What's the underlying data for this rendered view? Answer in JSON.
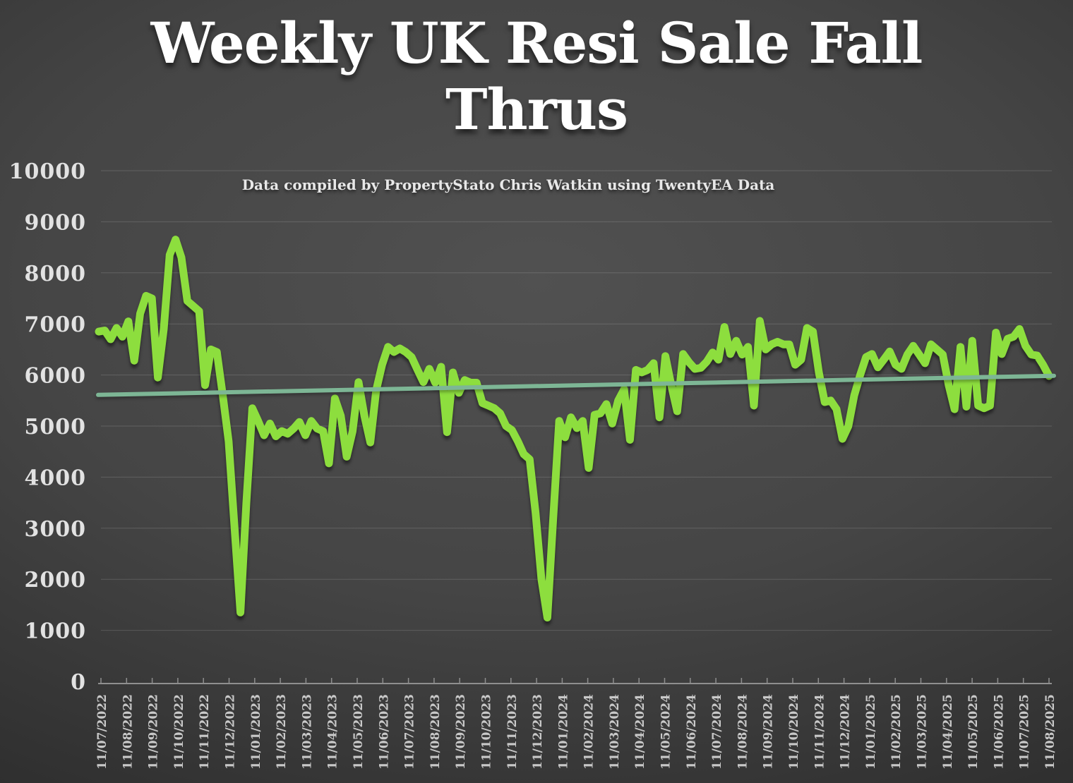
{
  "slide": {
    "title_line1": "Weekly UK Resi Sale Fall",
    "title_line2": "Thrus",
    "subtitle": "Data compiled by PropertyStato Chris Watkin using TwentyEA Data"
  },
  "colors": {
    "line_green": "#8dde3e",
    "trend_teal": "#7db695",
    "title_white": "#ffffff",
    "axis_gray": "#8f8f8f",
    "label_gray": "#c9c9c9"
  },
  "chart_data": {
    "type": "line",
    "title": "Weekly UK Resi Sale Fall Thrus",
    "subtitle": "Data compiled by PropertyStato Chris Watkin using TwentyEA Data",
    "cadence": "weekly",
    "grid": true,
    "legend_position": "none",
    "ylim": [
      0,
      10000
    ],
    "y_ticks": [
      0,
      1000,
      2000,
      3000,
      4000,
      5000,
      6000,
      7000,
      8000,
      9000,
      10000
    ],
    "x_tick_labels": [
      "11/07/2022",
      "11/08/2022",
      "11/09/2022",
      "11/10/2022",
      "11/11/2022",
      "11/12/2022",
      "11/01/2023",
      "11/02/2023",
      "11/03/2023",
      "11/04/2023",
      "11/05/2023",
      "11/06/2023",
      "11/07/2023",
      "11/08/2023",
      "11/09/2023",
      "11/10/2023",
      "11/11/2023",
      "11/12/2023",
      "11/01/2024",
      "11/02/2024",
      "11/03/2024",
      "11/04/2024",
      "11/05/2024",
      "11/06/2024",
      "11/07/2024",
      "11/08/2024",
      "11/09/2024",
      "11/10/2024",
      "11/11/2024",
      "11/12/2024",
      "11/01/2025",
      "11/02/2025",
      "11/03/2025",
      "11/04/2025",
      "11/05/2025",
      "11/06/2025",
      "11/07/2025",
      "11/08/2025"
    ],
    "series": [
      {
        "name": "Weekly UK residential sale fall-throughs",
        "color": "#8dde3e",
        "start_label": "11/07/2022",
        "end_label": "11/08/2025",
        "values": [
          6850,
          6870,
          6700,
          6920,
          6750,
          7050,
          6280,
          7200,
          7550,
          7500,
          5950,
          6900,
          8350,
          8650,
          8300,
          7450,
          7350,
          7250,
          5800,
          6500,
          6450,
          5600,
          4700,
          3000,
          1350,
          3500,
          5350,
          5100,
          4820,
          5050,
          4800,
          4900,
          4850,
          4950,
          5080,
          4820,
          5100,
          4950,
          4900,
          4270,
          5540,
          5200,
          4400,
          4900,
          5860,
          5200,
          4680,
          5700,
          6200,
          6550,
          6450,
          6520,
          6450,
          6350,
          6100,
          5860,
          6120,
          5850,
          6160,
          4880,
          6050,
          5650,
          5900,
          5850,
          5850,
          5450,
          5400,
          5350,
          5250,
          5000,
          4920,
          4700,
          4450,
          4350,
          3300,
          2000,
          1250,
          3200,
          5100,
          4780,
          5170,
          4960,
          5100,
          4180,
          5220,
          5250,
          5430,
          5050,
          5500,
          5720,
          4730,
          6100,
          6050,
          6100,
          6230,
          5170,
          6370,
          5800,
          5290,
          6410,
          6250,
          6120,
          6140,
          6260,
          6440,
          6300,
          6940,
          6410,
          6670,
          6400,
          6550,
          5400,
          7060,
          6500,
          6600,
          6650,
          6600,
          6600,
          6200,
          6300,
          6920,
          6850,
          6050,
          5470,
          5500,
          5330,
          4750,
          5000,
          5600,
          6000,
          6350,
          6410,
          6150,
          6300,
          6460,
          6200,
          6120,
          6400,
          6570,
          6400,
          6230,
          6600,
          6500,
          6400,
          5800,
          5330,
          6550,
          5380,
          6670,
          5400,
          5350,
          5400,
          6830,
          6410,
          6710,
          6750,
          6900,
          6570,
          6400,
          6380,
          6200,
          5980
        ]
      },
      {
        "name": "Trend line",
        "type": "straight",
        "color": "#7db695",
        "start": 5610,
        "end": 5985
      }
    ]
  }
}
